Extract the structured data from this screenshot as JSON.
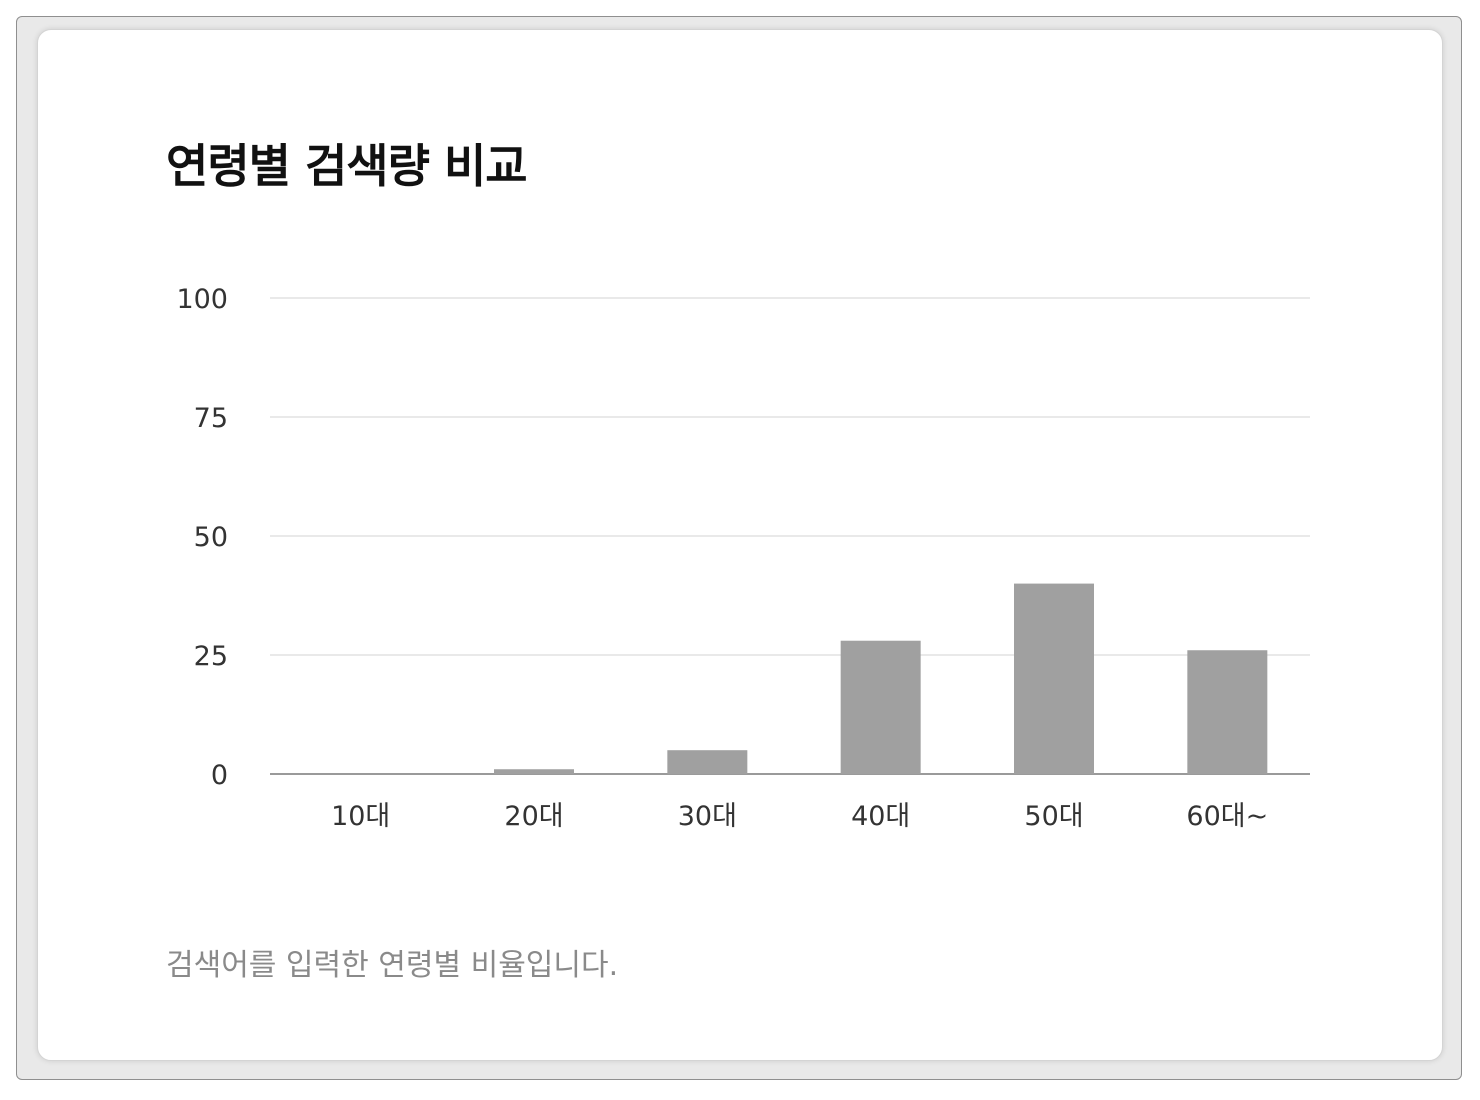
{
  "chart_data": {
    "type": "bar",
    "title": "연령별 검색량 비교",
    "categories": [
      "10대",
      "20대",
      "30대",
      "40대",
      "50대",
      "60대~"
    ],
    "values": [
      0,
      1,
      5,
      28,
      40,
      26
    ],
    "ylim": [
      0,
      100
    ],
    "yticks": [
      "0",
      "25",
      "50",
      "75",
      "100"
    ],
    "ytick_values": [
      0,
      25,
      50,
      75,
      100
    ],
    "xlabel": "",
    "ylabel": "",
    "grid": true,
    "bar_color": "#a0a0a0",
    "caption": "검색어를 입력한 연령별 비율입니다."
  }
}
